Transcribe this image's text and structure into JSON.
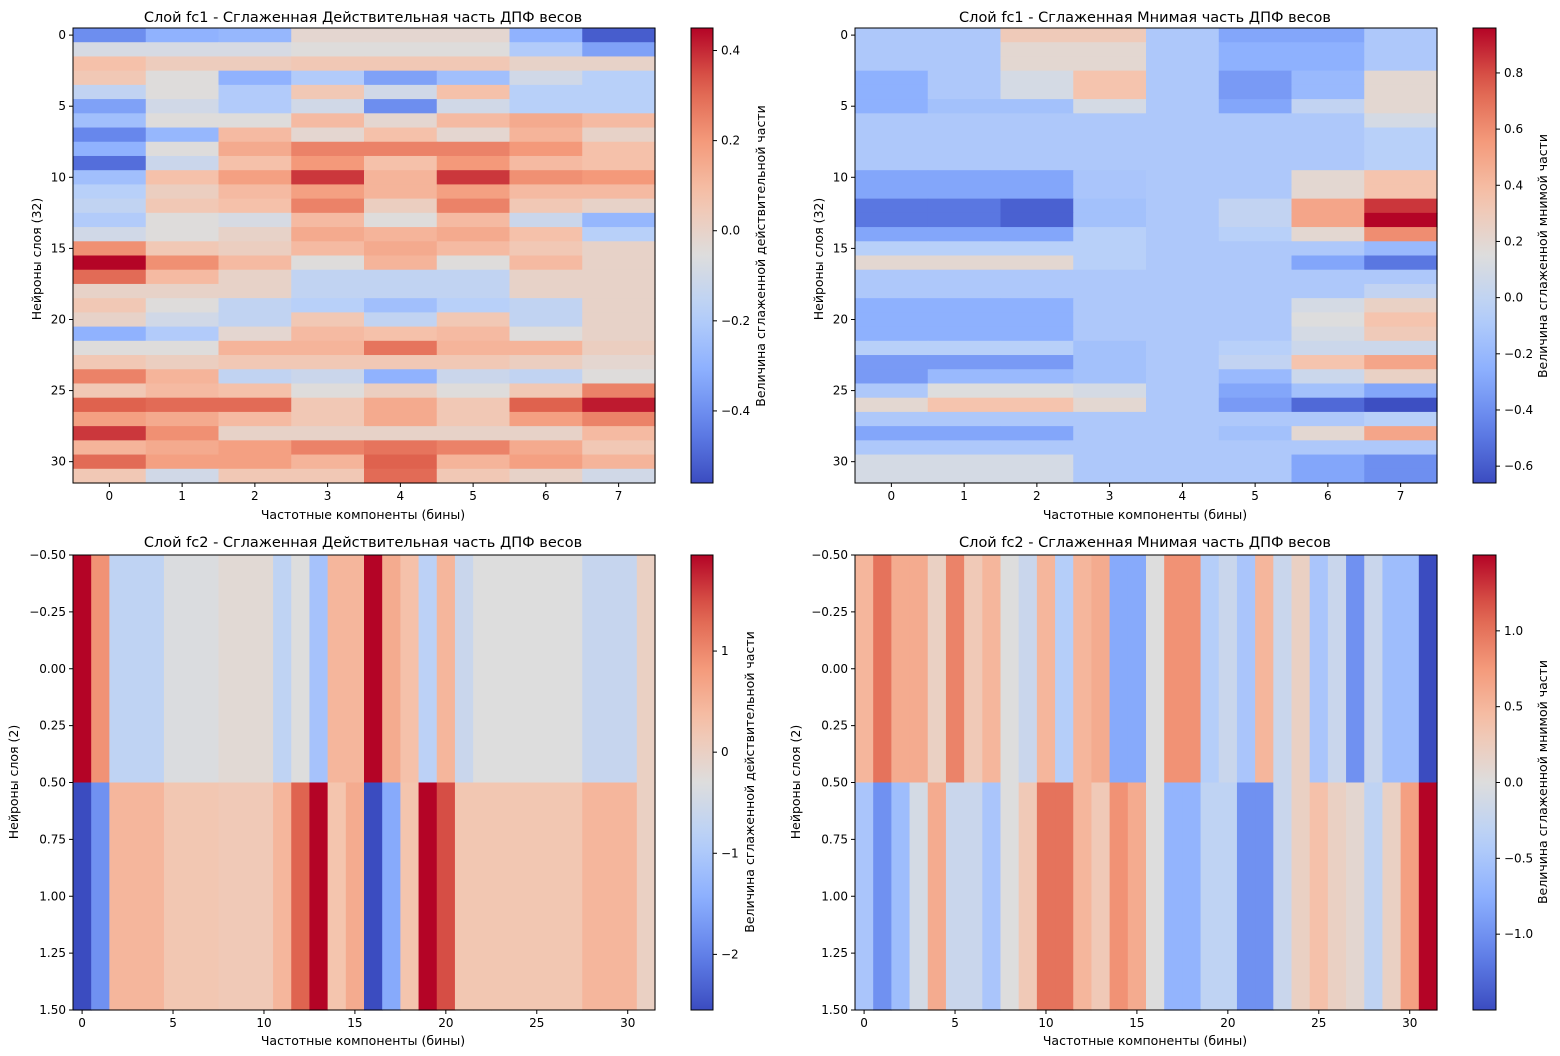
{
  "chart_data": [
    {
      "type": "heatmap",
      "title": "Слой fc1 - Сглаженная Действительная часть ДПФ весов",
      "xlabel": "Частотные компоненты (бины)",
      "ylabel": "Нейроны слоя (32)",
      "colorbar_label": "Величина сглаженной действительной части",
      "colormap": "coolwarm",
      "vmin": -0.56,
      "vmax": 0.45,
      "xticks": [
        0,
        1,
        2,
        3,
        4,
        5,
        6,
        7
      ],
      "yticks": [
        0,
        5,
        10,
        15,
        20,
        25,
        30
      ],
      "colorbar_ticks": [
        -0.4,
        -0.2,
        0.0,
        0.2,
        0.4
      ],
      "colorbar_ticklabels": [
        "−0.4",
        "−0.2",
        "0.0",
        "0.2",
        "0.4"
      ],
      "x_range": [
        -0.5,
        7.5
      ],
      "y_range": [
        -0.5,
        31.5
      ],
      "values": [
        [
          -0.4,
          -0.3,
          -0.28,
          -0.02,
          -0.02,
          -0.02,
          -0.3,
          -0.52
        ],
        [
          -0.08,
          -0.08,
          -0.08,
          -0.05,
          -0.05,
          -0.05,
          -0.2,
          -0.35
        ],
        [
          0.08,
          0.03,
          0.03,
          0.05,
          0.05,
          0.05,
          0.0,
          0.0
        ],
        [
          0.05,
          -0.05,
          -0.3,
          -0.2,
          -0.35,
          -0.25,
          -0.1,
          -0.18
        ],
        [
          -0.15,
          -0.05,
          -0.2,
          0.05,
          -0.1,
          0.08,
          -0.18,
          -0.18
        ],
        [
          -0.35,
          -0.1,
          -0.2,
          -0.1,
          -0.4,
          -0.1,
          -0.18,
          -0.18
        ],
        [
          -0.25,
          -0.05,
          -0.05,
          0.1,
          -0.02,
          0.1,
          0.15,
          0.1
        ],
        [
          -0.42,
          -0.28,
          0.1,
          -0.02,
          0.08,
          -0.02,
          0.12,
          0.0
        ],
        [
          -0.3,
          -0.05,
          0.15,
          0.25,
          0.25,
          0.25,
          0.2,
          0.08
        ],
        [
          -0.48,
          -0.12,
          0.08,
          0.2,
          0.08,
          0.2,
          0.1,
          0.08
        ],
        [
          -0.25,
          0.08,
          0.18,
          0.38,
          0.12,
          0.38,
          0.22,
          0.2
        ],
        [
          -0.18,
          0.02,
          0.1,
          0.18,
          0.12,
          0.18,
          0.1,
          0.1
        ],
        [
          -0.15,
          0.05,
          0.08,
          0.25,
          0.02,
          0.25,
          0.05,
          0.0
        ],
        [
          -0.2,
          -0.05,
          -0.08,
          0.1,
          -0.05,
          0.1,
          -0.12,
          -0.28
        ],
        [
          -0.1,
          -0.05,
          0.0,
          0.15,
          0.12,
          0.15,
          0.08,
          -0.18
        ],
        [
          0.22,
          0.05,
          0.02,
          0.1,
          0.15,
          0.1,
          0.05,
          0.0
        ],
        [
          0.45,
          0.22,
          0.1,
          -0.05,
          0.12,
          -0.05,
          0.1,
          0.0
        ],
        [
          0.3,
          0.1,
          0.0,
          -0.15,
          -0.15,
          -0.15,
          0.0,
          0.0
        ],
        [
          0.0,
          0.0,
          0.0,
          -0.15,
          -0.15,
          -0.15,
          0.0,
          0.0
        ],
        [
          0.05,
          -0.05,
          -0.15,
          -0.18,
          -0.25,
          -0.18,
          -0.15,
          0.0
        ],
        [
          0.0,
          -0.1,
          -0.15,
          0.05,
          -0.15,
          0.05,
          -0.15,
          0.0
        ],
        [
          -0.3,
          -0.2,
          -0.02,
          0.1,
          0.08,
          0.1,
          -0.05,
          0.0
        ],
        [
          -0.05,
          -0.05,
          0.12,
          0.12,
          0.28,
          0.12,
          0.12,
          0.02
        ],
        [
          0.05,
          0.02,
          0.05,
          0.05,
          0.05,
          0.05,
          0.02,
          -0.02
        ],
        [
          0.25,
          0.12,
          -0.15,
          -0.12,
          -0.3,
          -0.12,
          -0.15,
          -0.05
        ],
        [
          0.05,
          0.1,
          0.08,
          -0.05,
          0.02,
          -0.05,
          0.05,
          0.25
        ],
        [
          0.32,
          0.3,
          0.3,
          0.05,
          0.15,
          0.05,
          0.32,
          0.42
        ],
        [
          0.18,
          0.15,
          0.1,
          0.05,
          0.15,
          0.05,
          0.18,
          0.25
        ],
        [
          0.38,
          0.22,
          0.0,
          0.0,
          0.0,
          0.0,
          0.0,
          0.1
        ],
        [
          0.12,
          0.15,
          0.18,
          0.25,
          0.28,
          0.25,
          0.15,
          0.05
        ],
        [
          0.3,
          0.18,
          0.18,
          0.12,
          0.32,
          0.12,
          0.18,
          0.12
        ],
        [
          0.05,
          -0.1,
          0.05,
          0.05,
          0.3,
          0.05,
          0.0,
          -0.1
        ]
      ]
    },
    {
      "type": "heatmap",
      "title": "Слой fc1 - Сглаженная Мнимая часть ДПФ весов",
      "xlabel": "Частотные компоненты (бины)",
      "ylabel": "Нейроны слоя (32)",
      "colorbar_label": "Величина сглаженной мнимой части",
      "colormap": "coolwarm",
      "vmin": -0.66,
      "vmax": 0.96,
      "xticks": [
        0,
        1,
        2,
        3,
        4,
        5,
        6,
        7
      ],
      "yticks": [
        0,
        5,
        10,
        15,
        20,
        25,
        30
      ],
      "colorbar_ticks": [
        -0.6,
        -0.4,
        -0.2,
        0.0,
        0.2,
        0.4,
        0.6,
        0.8
      ],
      "colorbar_ticklabels": [
        "−0.6",
        "−0.4",
        "−0.2",
        "0.0",
        "0.2",
        "0.4",
        "0.6",
        "0.8"
      ],
      "x_range": [
        -0.5,
        7.5
      ],
      "y_range": [
        -0.5,
        31.5
      ],
      "values": [
        [
          -0.1,
          -0.1,
          0.3,
          0.3,
          -0.1,
          -0.3,
          -0.3,
          -0.1
        ],
        [
          -0.1,
          -0.1,
          0.2,
          0.2,
          -0.1,
          -0.25,
          -0.25,
          -0.1
        ],
        [
          -0.1,
          -0.1,
          0.2,
          0.2,
          -0.1,
          -0.25,
          -0.25,
          -0.1
        ],
        [
          -0.25,
          -0.1,
          0.1,
          0.35,
          -0.1,
          -0.35,
          -0.2,
          0.2
        ],
        [
          -0.25,
          -0.1,
          0.1,
          0.35,
          -0.1,
          -0.35,
          -0.2,
          0.2
        ],
        [
          -0.25,
          -0.15,
          -0.15,
          0.1,
          -0.1,
          -0.3,
          0.0,
          0.2
        ],
        [
          -0.1,
          -0.1,
          -0.1,
          -0.1,
          -0.1,
          -0.1,
          -0.1,
          0.1
        ],
        [
          -0.1,
          -0.1,
          -0.1,
          -0.1,
          -0.1,
          -0.1,
          -0.1,
          -0.05
        ],
        [
          -0.1,
          -0.1,
          -0.1,
          -0.1,
          -0.1,
          -0.1,
          -0.1,
          -0.05
        ],
        [
          -0.1,
          -0.1,
          -0.1,
          -0.1,
          -0.1,
          -0.1,
          -0.1,
          -0.05
        ],
        [
          -0.3,
          -0.3,
          -0.3,
          -0.12,
          -0.1,
          -0.1,
          0.2,
          0.35
        ],
        [
          -0.3,
          -0.3,
          -0.3,
          -0.12,
          -0.1,
          -0.1,
          0.2,
          0.35
        ],
        [
          -0.5,
          -0.5,
          -0.58,
          -0.15,
          -0.1,
          0.0,
          0.5,
          0.85
        ],
        [
          -0.5,
          -0.5,
          -0.58,
          -0.15,
          -0.1,
          0.0,
          0.5,
          0.96
        ],
        [
          -0.3,
          -0.3,
          -0.3,
          -0.05,
          -0.1,
          -0.05,
          0.2,
          0.6
        ],
        [
          -0.05,
          -0.05,
          -0.05,
          -0.05,
          -0.1,
          -0.1,
          -0.1,
          -0.2
        ],
        [
          0.2,
          0.2,
          0.2,
          -0.05,
          -0.1,
          -0.1,
          -0.3,
          -0.5
        ],
        [
          -0.1,
          -0.1,
          -0.1,
          -0.1,
          -0.1,
          -0.1,
          -0.1,
          -0.1
        ],
        [
          -0.1,
          -0.1,
          -0.1,
          -0.1,
          -0.1,
          -0.1,
          -0.1,
          0.0
        ],
        [
          -0.25,
          -0.25,
          -0.25,
          -0.1,
          -0.1,
          -0.1,
          0.1,
          0.25
        ],
        [
          -0.25,
          -0.25,
          -0.25,
          -0.1,
          -0.1,
          -0.1,
          0.15,
          0.35
        ],
        [
          -0.25,
          -0.25,
          -0.25,
          -0.1,
          -0.1,
          -0.1,
          0.1,
          0.3
        ],
        [
          -0.05,
          -0.05,
          -0.05,
          -0.15,
          -0.1,
          -0.05,
          0.05,
          0.05
        ],
        [
          -0.35,
          -0.35,
          -0.35,
          -0.15,
          -0.1,
          0.0,
          0.35,
          0.5
        ],
        [
          -0.35,
          -0.2,
          -0.2,
          -0.15,
          -0.1,
          -0.2,
          0.05,
          0.25
        ],
        [
          -0.1,
          0.15,
          0.15,
          0.1,
          -0.1,
          -0.3,
          -0.15,
          -0.3
        ],
        [
          0.2,
          0.35,
          0.35,
          0.2,
          -0.1,
          -0.35,
          -0.55,
          -0.65
        ],
        [
          -0.1,
          -0.1,
          -0.1,
          -0.1,
          -0.1,
          -0.1,
          -0.1,
          -0.05
        ],
        [
          -0.3,
          -0.3,
          -0.3,
          -0.1,
          -0.1,
          -0.15,
          0.2,
          0.5
        ],
        [
          -0.1,
          -0.1,
          -0.1,
          -0.1,
          -0.1,
          -0.1,
          -0.1,
          -0.1
        ],
        [
          0.1,
          0.1,
          0.1,
          -0.1,
          -0.1,
          -0.1,
          -0.3,
          -0.4
        ],
        [
          0.1,
          0.1,
          0.1,
          -0.1,
          -0.1,
          -0.1,
          -0.3,
          -0.4
        ]
      ]
    },
    {
      "type": "heatmap",
      "title": "Слой fc2 - Сглаженная Действительная часть ДПФ весов",
      "xlabel": "Частотные компоненты (бины)",
      "ylabel": "Нейроны слоя (2)",
      "colorbar_label": "Величина сглаженной действительной части",
      "colormap": "coolwarm",
      "vmin": -2.55,
      "vmax": 1.95,
      "xticks": [
        0,
        5,
        10,
        15,
        20,
        25,
        30
      ],
      "yticks": [
        -0.5,
        -0.25,
        0.0,
        0.25,
        0.5,
        0.75,
        1.0,
        1.25,
        1.5
      ],
      "yticklabels": [
        "−0.50",
        "−0.25",
        "0.00",
        "0.25",
        "0.50",
        "0.75",
        "1.00",
        "1.25",
        "1.50"
      ],
      "colorbar_ticks": [
        -2,
        -1,
        0,
        1
      ],
      "colorbar_ticklabels": [
        "−2",
        "−1",
        "0",
        "1"
      ],
      "x_range": [
        -0.5,
        31.5
      ],
      "y_range": [
        -0.5,
        1.5
      ],
      "values": [
        [
          1.95,
          0.9,
          -0.75,
          -0.75,
          -0.75,
          -0.35,
          -0.35,
          -0.35,
          -0.2,
          -0.2,
          -0.2,
          -0.75,
          -0.3,
          -1.1,
          0.45,
          0.45,
          1.95,
          0.6,
          0.3,
          -0.8,
          0.45,
          -0.6,
          -0.3,
          -0.3,
          -0.3,
          -0.3,
          -0.3,
          -0.3,
          -0.65,
          -0.65,
          -0.65,
          0.0
        ],
        [
          -2.55,
          -1.8,
          0.45,
          0.45,
          0.45,
          0.2,
          0.2,
          0.2,
          0.15,
          0.15,
          0.15,
          0.45,
          1.35,
          1.95,
          0.25,
          0.6,
          -2.55,
          -1.5,
          0.25,
          1.95,
          1.5,
          0.2,
          0.2,
          0.2,
          0.2,
          0.2,
          0.2,
          0.2,
          0.45,
          0.45,
          0.45,
          0.0
        ]
      ]
    },
    {
      "type": "heatmap",
      "title": "Слой fc2 - Сглаженная Мнимая часть ДПФ весов",
      "xlabel": "Частотные компоненты (бины)",
      "ylabel": "Нейроны слоя (2)",
      "colorbar_label": "Величина сглаженной мнимой части",
      "colormap": "coolwarm",
      "vmin": -1.5,
      "vmax": 1.5,
      "xticks": [
        0,
        5,
        10,
        15,
        20,
        25,
        30
      ],
      "yticks": [
        -0.5,
        -0.25,
        0.0,
        0.25,
        0.5,
        0.75,
        1.0,
        1.25,
        1.5
      ],
      "yticklabels": [
        "−0.50",
        "−0.25",
        "0.00",
        "0.25",
        "0.50",
        "0.75",
        "1.00",
        "1.25",
        "1.50"
      ],
      "colorbar_ticks": [
        -1.0,
        -0.5,
        0.0,
        0.5,
        1.0
      ],
      "colorbar_ticklabels": [
        "−1.0",
        "−0.5",
        "0.0",
        "0.5",
        "1.0"
      ],
      "x_range": [
        -0.5,
        31.5
      ],
      "y_range": [
        -0.5,
        1.5
      ],
      "values": [
        [
          0.5,
          1.0,
          0.6,
          0.6,
          0.2,
          0.9,
          0.3,
          0.5,
          0.0,
          -0.2,
          0.5,
          -0.4,
          0.5,
          0.6,
          -0.8,
          -0.8,
          0.0,
          0.8,
          0.8,
          -0.4,
          -0.2,
          -0.5,
          0.5,
          -0.2,
          0.2,
          -0.5,
          -0.2,
          -1.0,
          -0.2,
          -0.6,
          -0.6,
          -1.5
        ],
        [
          -0.5,
          -1.0,
          -0.6,
          -0.1,
          0.6,
          -0.2,
          -0.2,
          -0.5,
          0.0,
          0.3,
          1.0,
          1.0,
          0.5,
          0.3,
          0.8,
          0.6,
          0.0,
          -0.7,
          -0.7,
          -0.3,
          -0.3,
          -1.0,
          -1.0,
          -0.2,
          0.2,
          0.4,
          0.2,
          0.1,
          -0.3,
          0.2,
          0.7,
          1.5
        ]
      ]
    }
  ]
}
